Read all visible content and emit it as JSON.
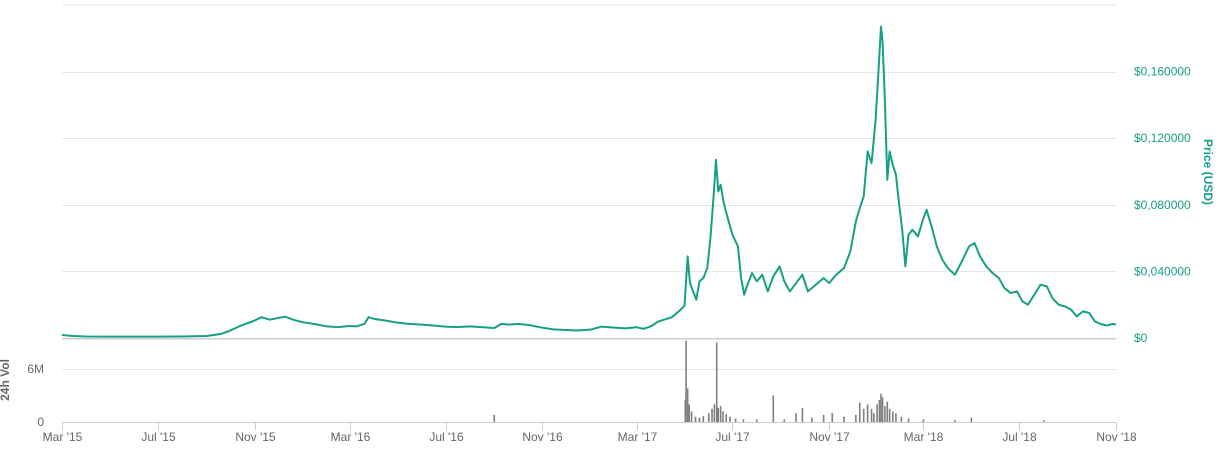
{
  "colors": {
    "price_line": "#16a085",
    "price_axis_text": "#16a085",
    "volume_bars": "#7f7f7f",
    "gridline": "#e6e6e6",
    "axis_line": "#cccccc",
    "axis_text": "#666666"
  },
  "chart_data": [
    {
      "type": "line",
      "ylabel": "Price (USD)",
      "y_axis_side": "right",
      "ylim": [
        0,
        0.2
      ],
      "yticks": [
        0,
        0.04,
        0.08,
        0.12,
        0.16
      ],
      "ytick_labels": [
        "$0",
        "$0,040000",
        "$0,080000",
        "$0,120000",
        "$0,160000"
      ],
      "grid": true,
      "series": [
        {
          "points": [
            [
              "2015-03-01",
              0.0018
            ],
            [
              "2015-03-15",
              0.0012
            ],
            [
              "2015-04-01",
              0.0009
            ],
            [
              "2015-05-01",
              0.0008
            ],
            [
              "2015-06-01",
              0.0008
            ],
            [
              "2015-07-01",
              0.0008
            ],
            [
              "2015-08-01",
              0.0009
            ],
            [
              "2015-09-01",
              0.0012
            ],
            [
              "2015-09-20",
              0.0025
            ],
            [
              "2015-10-01",
              0.0045
            ],
            [
              "2015-10-15",
              0.0075
            ],
            [
              "2015-11-01",
              0.0105
            ],
            [
              "2015-11-10",
              0.0125
            ],
            [
              "2015-11-20",
              0.011
            ],
            [
              "2015-12-01",
              0.012
            ],
            [
              "2015-12-10",
              0.0128
            ],
            [
              "2015-12-20",
              0.011
            ],
            [
              "2016-01-01",
              0.0095
            ],
            [
              "2016-01-15",
              0.0085
            ],
            [
              "2016-02-01",
              0.007
            ],
            [
              "2016-02-15",
              0.0065
            ],
            [
              "2016-03-01",
              0.0072
            ],
            [
              "2016-03-10",
              0.007
            ],
            [
              "2016-03-20",
              0.0085
            ],
            [
              "2016-03-25",
              0.0125
            ],
            [
              "2016-04-01",
              0.0115
            ],
            [
              "2016-04-15",
              0.0105
            ],
            [
              "2016-05-01",
              0.0092
            ],
            [
              "2016-05-15",
              0.0085
            ],
            [
              "2016-06-01",
              0.008
            ],
            [
              "2016-06-15",
              0.0075
            ],
            [
              "2016-07-01",
              0.0068
            ],
            [
              "2016-07-15",
              0.0065
            ],
            [
              "2016-08-01",
              0.007
            ],
            [
              "2016-08-15",
              0.0065
            ],
            [
              "2016-09-01",
              0.006
            ],
            [
              "2016-09-10",
              0.0085
            ],
            [
              "2016-09-20",
              0.008
            ],
            [
              "2016-10-01",
              0.0085
            ],
            [
              "2016-10-15",
              0.0078
            ],
            [
              "2016-11-01",
              0.0062
            ],
            [
              "2016-11-15",
              0.0052
            ],
            [
              "2016-12-01",
              0.0048
            ],
            [
              "2016-12-15",
              0.0045
            ],
            [
              "2017-01-01",
              0.005
            ],
            [
              "2017-01-15",
              0.0068
            ],
            [
              "2017-02-01",
              0.0062
            ],
            [
              "2017-02-15",
              0.0058
            ],
            [
              "2017-03-01",
              0.0065
            ],
            [
              "2017-03-10",
              0.0055
            ],
            [
              "2017-03-20",
              0.0072
            ],
            [
              "2017-03-28",
              0.0098
            ],
            [
              "2017-04-05",
              0.011
            ],
            [
              "2017-04-15",
              0.0125
            ],
            [
              "2017-04-25",
              0.0165
            ],
            [
              "2017-05-01",
              0.0195
            ],
            [
              "2017-05-05",
              0.049
            ],
            [
              "2017-05-08",
              0.033
            ],
            [
              "2017-05-12",
              0.028
            ],
            [
              "2017-05-16",
              0.023
            ],
            [
              "2017-05-20",
              0.034
            ],
            [
              "2017-05-25",
              0.036
            ],
            [
              "2017-05-30",
              0.042
            ],
            [
              "2017-06-03",
              0.06
            ],
            [
              "2017-06-07",
              0.085
            ],
            [
              "2017-06-10",
              0.107
            ],
            [
              "2017-06-13",
              0.088
            ],
            [
              "2017-06-16",
              0.092
            ],
            [
              "2017-06-20",
              0.081
            ],
            [
              "2017-06-25",
              0.072
            ],
            [
              "2017-07-01",
              0.062
            ],
            [
              "2017-07-08",
              0.055
            ],
            [
              "2017-07-12",
              0.036
            ],
            [
              "2017-07-16",
              0.026
            ],
            [
              "2017-07-20",
              0.032
            ],
            [
              "2017-07-26",
              0.039
            ],
            [
              "2017-08-01",
              0.034
            ],
            [
              "2017-08-08",
              0.038
            ],
            [
              "2017-08-15",
              0.028
            ],
            [
              "2017-08-22",
              0.037
            ],
            [
              "2017-08-30",
              0.043
            ],
            [
              "2017-09-05",
              0.034
            ],
            [
              "2017-09-12",
              0.028
            ],
            [
              "2017-09-20",
              0.033
            ],
            [
              "2017-09-28",
              0.038
            ],
            [
              "2017-10-05",
              0.028
            ],
            [
              "2017-10-15",
              0.032
            ],
            [
              "2017-10-25",
              0.036
            ],
            [
              "2017-11-01",
              0.033
            ],
            [
              "2017-11-10",
              0.038
            ],
            [
              "2017-11-20",
              0.042
            ],
            [
              "2017-11-28",
              0.052
            ],
            [
              "2017-12-05",
              0.07
            ],
            [
              "2017-12-10",
              0.078
            ],
            [
              "2017-12-15",
              0.085
            ],
            [
              "2017-12-20",
              0.112
            ],
            [
              "2017-12-25",
              0.105
            ],
            [
              "2017-12-30",
              0.13
            ],
            [
              "2018-01-03",
              0.162
            ],
            [
              "2018-01-06",
              0.187
            ],
            [
              "2018-01-08",
              0.178
            ],
            [
              "2018-01-11",
              0.142
            ],
            [
              "2018-01-14",
              0.095
            ],
            [
              "2018-01-17",
              0.112
            ],
            [
              "2018-01-21",
              0.104
            ],
            [
              "2018-01-25",
              0.098
            ],
            [
              "2018-01-28",
              0.085
            ],
            [
              "2018-02-02",
              0.065
            ],
            [
              "2018-02-06",
              0.043
            ],
            [
              "2018-02-10",
              0.062
            ],
            [
              "2018-02-15",
              0.065
            ],
            [
              "2018-02-22",
              0.061
            ],
            [
              "2018-03-01",
              0.072
            ],
            [
              "2018-03-05",
              0.077
            ],
            [
              "2018-03-12",
              0.066
            ],
            [
              "2018-03-18",
              0.055
            ],
            [
              "2018-03-25",
              0.047
            ],
            [
              "2018-04-01",
              0.042
            ],
            [
              "2018-04-10",
              0.038
            ],
            [
              "2018-04-20",
              0.047
            ],
            [
              "2018-04-28",
              0.055
            ],
            [
              "2018-05-05",
              0.057
            ],
            [
              "2018-05-12",
              0.049
            ],
            [
              "2018-05-20",
              0.043
            ],
            [
              "2018-05-28",
              0.039
            ],
            [
              "2018-06-05",
              0.036
            ],
            [
              "2018-06-12",
              0.03
            ],
            [
              "2018-06-20",
              0.027
            ],
            [
              "2018-06-28",
              0.028
            ],
            [
              "2018-07-05",
              0.022
            ],
            [
              "2018-07-12",
              0.02
            ],
            [
              "2018-07-20",
              0.026
            ],
            [
              "2018-07-28",
              0.032
            ],
            [
              "2018-08-05",
              0.031
            ],
            [
              "2018-08-12",
              0.024
            ],
            [
              "2018-08-20",
              0.02
            ],
            [
              "2018-08-28",
              0.019
            ],
            [
              "2018-09-05",
              0.017
            ],
            [
              "2018-09-12",
              0.013
            ],
            [
              "2018-09-20",
              0.016
            ],
            [
              "2018-09-28",
              0.015
            ],
            [
              "2018-10-05",
              0.01
            ],
            [
              "2018-10-12",
              0.0085
            ],
            [
              "2018-10-20",
              0.0075
            ],
            [
              "2018-10-28",
              0.0085
            ],
            [
              "2018-11-01",
              0.008
            ]
          ]
        }
      ]
    },
    {
      "type": "bar",
      "ylabel": "24h Vol",
      "y_axis_side": "left",
      "ylim": [
        0,
        9500000
      ],
      "yticks": [
        0,
        6000000
      ],
      "ytick_labels": [
        "0",
        "6M"
      ],
      "grid": true,
      "series": [
        {
          "points": [
            [
              "2016-09-01",
              800000
            ],
            [
              "2017-05-02",
              2500000
            ],
            [
              "2017-05-03",
              9200000
            ],
            [
              "2017-05-05",
              3800000
            ],
            [
              "2017-05-07",
              2000000
            ],
            [
              "2017-05-10",
              1200000
            ],
            [
              "2017-05-15",
              600000
            ],
            [
              "2017-05-20",
              500000
            ],
            [
              "2017-05-25",
              700000
            ],
            [
              "2017-06-01",
              1000000
            ],
            [
              "2017-06-05",
              1500000
            ],
            [
              "2017-06-08",
              2000000
            ],
            [
              "2017-06-11",
              9000000
            ],
            [
              "2017-06-13",
              1600000
            ],
            [
              "2017-06-16",
              1800000
            ],
            [
              "2017-06-19",
              1200000
            ],
            [
              "2017-06-23",
              900000
            ],
            [
              "2017-06-28",
              600000
            ],
            [
              "2017-07-05",
              400000
            ],
            [
              "2017-07-15",
              300000
            ],
            [
              "2017-08-01",
              300000
            ],
            [
              "2017-08-22",
              3000000
            ],
            [
              "2017-09-05",
              300000
            ],
            [
              "2017-09-20",
              1000000
            ],
            [
              "2017-09-28",
              1600000
            ],
            [
              "2017-10-10",
              500000
            ],
            [
              "2017-10-25",
              800000
            ],
            [
              "2017-11-05",
              1000000
            ],
            [
              "2017-11-20",
              600000
            ],
            [
              "2017-12-05",
              800000
            ],
            [
              "2017-12-10",
              2200000
            ],
            [
              "2017-12-15",
              1500000
            ],
            [
              "2017-12-20",
              2000000
            ],
            [
              "2017-12-25",
              1500000
            ],
            [
              "2017-12-28",
              1000000
            ],
            [
              "2018-01-01",
              2000000
            ],
            [
              "2018-01-04",
              2500000
            ],
            [
              "2018-01-06",
              3200000
            ],
            [
              "2018-01-08",
              2800000
            ],
            [
              "2018-01-11",
              1800000
            ],
            [
              "2018-01-14",
              2300000
            ],
            [
              "2018-01-17",
              1500000
            ],
            [
              "2018-01-21",
              1200000
            ],
            [
              "2018-01-25",
              1000000
            ],
            [
              "2018-02-01",
              600000
            ],
            [
              "2018-02-10",
              400000
            ],
            [
              "2018-03-01",
              300000
            ],
            [
              "2018-04-10",
              200000
            ],
            [
              "2018-05-01",
              500000
            ],
            [
              "2018-08-01",
              200000
            ]
          ]
        }
      ]
    }
  ],
  "x_axis": {
    "ticks": [
      "2015-03-01",
      "2015-07-01",
      "2015-11-01",
      "2016-03-01",
      "2016-07-01",
      "2016-11-01",
      "2017-03-01",
      "2017-07-01",
      "2017-11-01",
      "2018-03-01",
      "2018-07-01",
      "2018-11-01"
    ],
    "tick_labels": [
      "Mar '15",
      "Jul '15",
      "Nov '15",
      "Mar '16",
      "Jul '16",
      "Nov '16",
      "Mar '17",
      "Jul '17",
      "Nov '17",
      "Mar '18",
      "Jul '18",
      "Nov '18"
    ],
    "range": [
      "2015-03-01",
      "2018-11-01"
    ]
  }
}
